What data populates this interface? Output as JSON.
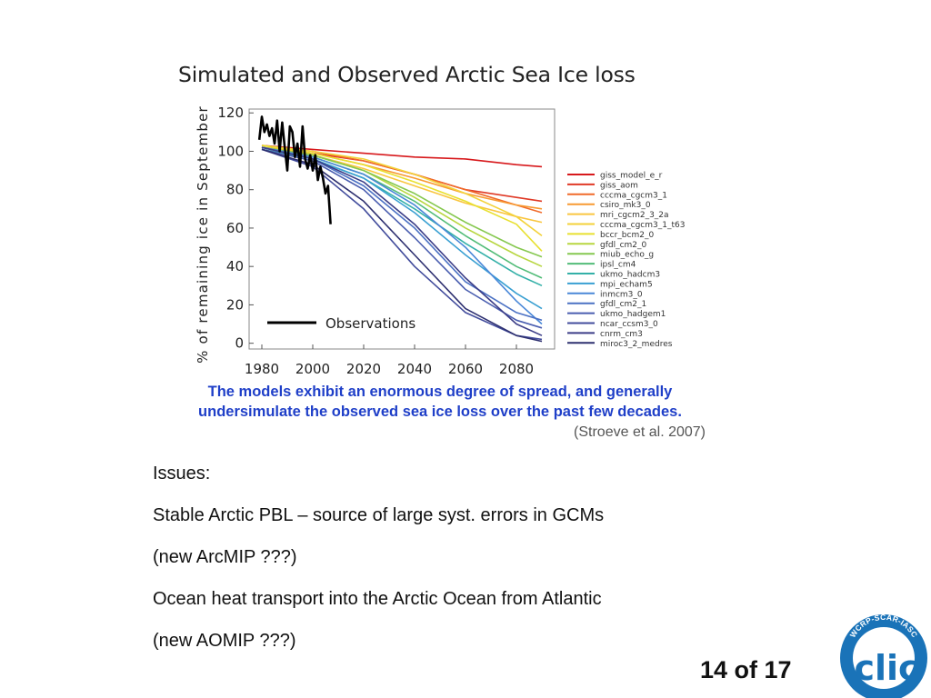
{
  "slide": {
    "issues": [
      "Issues:",
      "Stable Arctic PBL – source of  large syst. errors in GCMs",
      "(new ArcMIP ???)",
      "Ocean heat transport into the Arctic Ocean from Atlantic",
      "(new AOMIP ???)"
    ],
    "page_number": "14 of 17",
    "logo": {
      "ring_text": "WCRP-SCAR-IASC",
      "word": "clic"
    }
  },
  "colors": {
    "background": "#ffffff",
    "caption": "#1f3fc8",
    "observations": "#000000",
    "logo_blue": "#1a73b8"
  },
  "chart_data": {
    "type": "line",
    "title": "Simulated and Observed Arctic Sea Ice loss",
    "xlabel": "",
    "ylabel": "% of remaining ice in September",
    "xlim": [
      1975,
      2095
    ],
    "ylim": [
      -3,
      122
    ],
    "xticks": [
      1980,
      2000,
      2020,
      2040,
      2060,
      2080
    ],
    "yticks": [
      0,
      20,
      40,
      60,
      80,
      100,
      120
    ],
    "grid": false,
    "legend": "right",
    "observations_label": "Observations",
    "caption": "The models exhibit an enormous degree of spread, and generally undersimulate the observed sea ice loss over the past few decades.",
    "citation": "(Stroeve et al. 2007)",
    "observations": {
      "x": [
        1979,
        1980,
        1981,
        1982,
        1983,
        1984,
        1985,
        1986,
        1987,
        1988,
        1989,
        1990,
        1991,
        1992,
        1993,
        1994,
        1995,
        1996,
        1997,
        1998,
        1999,
        2000,
        2001,
        2002,
        2003,
        2004,
        2005,
        2006,
        2007
      ],
      "y": [
        106,
        118,
        110,
        114,
        108,
        112,
        104,
        116,
        100,
        115,
        102,
        90,
        113,
        110,
        97,
        104,
        92,
        113,
        96,
        91,
        98,
        90,
        98,
        85,
        92,
        86,
        78,
        82,
        62
      ]
    },
    "series": [
      {
        "name": "giss_model_e_r",
        "color": "#d7191c",
        "x": [
          1980,
          2000,
          2020,
          2040,
          2060,
          2080,
          2090
        ],
        "y": [
          103,
          101,
          99,
          97,
          96,
          93,
          92
        ]
      },
      {
        "name": "giss_aom",
        "color": "#e03a26",
        "x": [
          1980,
          2000,
          2020,
          2040,
          2060,
          2080,
          2090
        ],
        "y": [
          102,
          99,
          95,
          88,
          80,
          76,
          74
        ]
      },
      {
        "name": "cccma_cgcm3_1",
        "color": "#f06a2a",
        "x": [
          1980,
          2000,
          2020,
          2040,
          2060,
          2080,
          2090
        ],
        "y": [
          103,
          100,
          95,
          88,
          80,
          72,
          68
        ]
      },
      {
        "name": "csiro_mk3_0",
        "color": "#f79a32",
        "x": [
          1980,
          2000,
          2020,
          2040,
          2060,
          2080,
          2090
        ],
        "y": [
          102,
          99,
          93,
          86,
          78,
          72,
          70
        ]
      },
      {
        "name": "mri_cgcm2_3_2a",
        "color": "#f9c640",
        "x": [
          1980,
          2000,
          2020,
          2040,
          2060,
          2080,
          2090
        ],
        "y": [
          102,
          98,
          91,
          82,
          73,
          66,
          63
        ]
      },
      {
        "name": "cccma_cgcm3_1_t63",
        "color": "#f3d23a",
        "x": [
          1980,
          2000,
          2020,
          2040,
          2060,
          2080,
          2090
        ],
        "y": [
          103,
          100,
          96,
          88,
          78,
          66,
          56
        ]
      },
      {
        "name": "bccr_bcm2_0",
        "color": "#e8e030",
        "x": [
          1980,
          2000,
          2020,
          2040,
          2060,
          2080,
          2090
        ],
        "y": [
          103,
          99,
          93,
          84,
          74,
          62,
          48
        ]
      },
      {
        "name": "gfdl_cm2_0",
        "color": "#b8d640",
        "x": [
          1980,
          2000,
          2020,
          2040,
          2060,
          2080,
          2090
        ],
        "y": [
          102,
          98,
          90,
          76,
          60,
          46,
          40
        ]
      },
      {
        "name": "miub_echo_g",
        "color": "#86c850",
        "x": [
          1980,
          2000,
          2020,
          2040,
          2060,
          2080,
          2090
        ],
        "y": [
          102,
          98,
          90,
          78,
          63,
          50,
          45
        ]
      },
      {
        "name": "ipsl_cm4",
        "color": "#52bc78",
        "x": [
          1980,
          2000,
          2020,
          2040,
          2060,
          2080,
          2090
        ],
        "y": [
          102,
          97,
          88,
          74,
          56,
          40,
          34
        ]
      },
      {
        "name": "ukmo_hadcm3",
        "color": "#34b0a8",
        "x": [
          1980,
          2000,
          2020,
          2040,
          2060,
          2080,
          2090
        ],
        "y": [
          101,
          96,
          86,
          70,
          52,
          36,
          30
        ]
      },
      {
        "name": "mpi_echam5",
        "color": "#3aa0d2",
        "x": [
          1980,
          2000,
          2020,
          2040,
          2060,
          2080,
          2090
        ],
        "y": [
          102,
          96,
          86,
          68,
          46,
          26,
          18
        ]
      },
      {
        "name": "inmcm3_0",
        "color": "#4a88d8",
        "x": [
          1980,
          2000,
          2020,
          2040,
          2060,
          2080,
          2090
        ],
        "y": [
          102,
          97,
          88,
          72,
          50,
          22,
          10
        ]
      },
      {
        "name": "gfdl_cm2_1",
        "color": "#4c72c4",
        "x": [
          1980,
          2000,
          2020,
          2040,
          2060,
          2080,
          2090
        ],
        "y": [
          102,
          96,
          82,
          60,
          32,
          16,
          12
        ]
      },
      {
        "name": "ukmo_hadgem1",
        "color": "#4a5eb0",
        "x": [
          1980,
          2000,
          2020,
          2040,
          2060,
          2080,
          2090
        ],
        "y": [
          101,
          95,
          80,
          55,
          28,
          12,
          8
        ]
      },
      {
        "name": "ncar_ccsm3_0",
        "color": "#424c9c",
        "x": [
          1980,
          2000,
          2020,
          2040,
          2060,
          2080,
          2090
        ],
        "y": [
          101,
          92,
          70,
          40,
          16,
          4,
          2
        ]
      },
      {
        "name": "cnrm_cm3",
        "color": "#3c3e88",
        "x": [
          1980,
          2000,
          2020,
          2040,
          2060,
          2080,
          2090
        ],
        "y": [
          102,
          96,
          84,
          62,
          34,
          10,
          4
        ]
      },
      {
        "name": "miroc3_2_medres",
        "color": "#2e3070",
        "x": [
          1980,
          2000,
          2020,
          2040,
          2060,
          2080,
          2090
        ],
        "y": [
          101,
          93,
          74,
          46,
          18,
          4,
          1
        ]
      }
    ]
  }
}
